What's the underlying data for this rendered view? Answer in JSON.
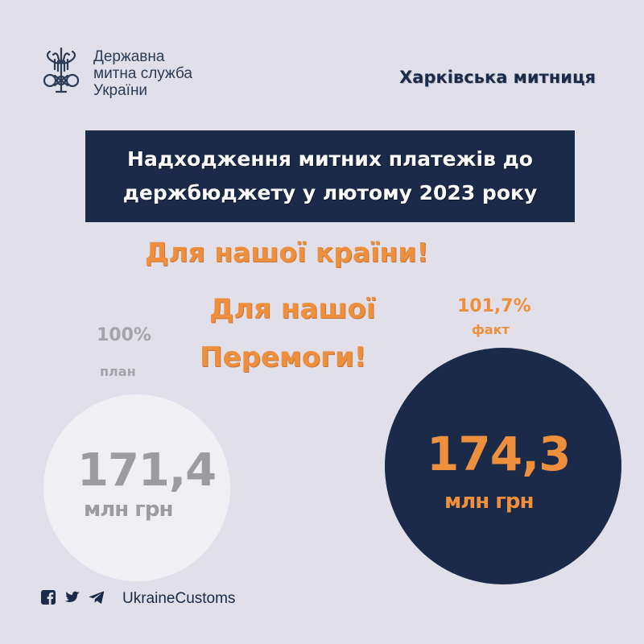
{
  "header": {
    "logo_lines": [
      "Державна",
      "митна служба",
      "України"
    ],
    "office": "Харківська митниця"
  },
  "title": {
    "line1": "Надходження митних платежів  до",
    "line2": "держбюджету у лютому 2023 року"
  },
  "slogans": {
    "line1": "Для нашої країни!",
    "line2": "Для нашої",
    "line3": "Перемоги!"
  },
  "plan": {
    "percent": "100%",
    "label": "план",
    "value": "171,4",
    "unit": "млн грн"
  },
  "fact": {
    "percent": "101,7%",
    "label": "факт",
    "value": "174,3",
    "unit": "млн грн"
  },
  "footer": {
    "icons": [
      "facebook-icon",
      "twitter-icon",
      "telegram-icon"
    ],
    "handle": "UkraineCustoms"
  },
  "colors": {
    "background": "#e1e0ea",
    "navy": "#1b2a48",
    "orange": "#ee8f3d",
    "grey": "#9c9c9f"
  }
}
